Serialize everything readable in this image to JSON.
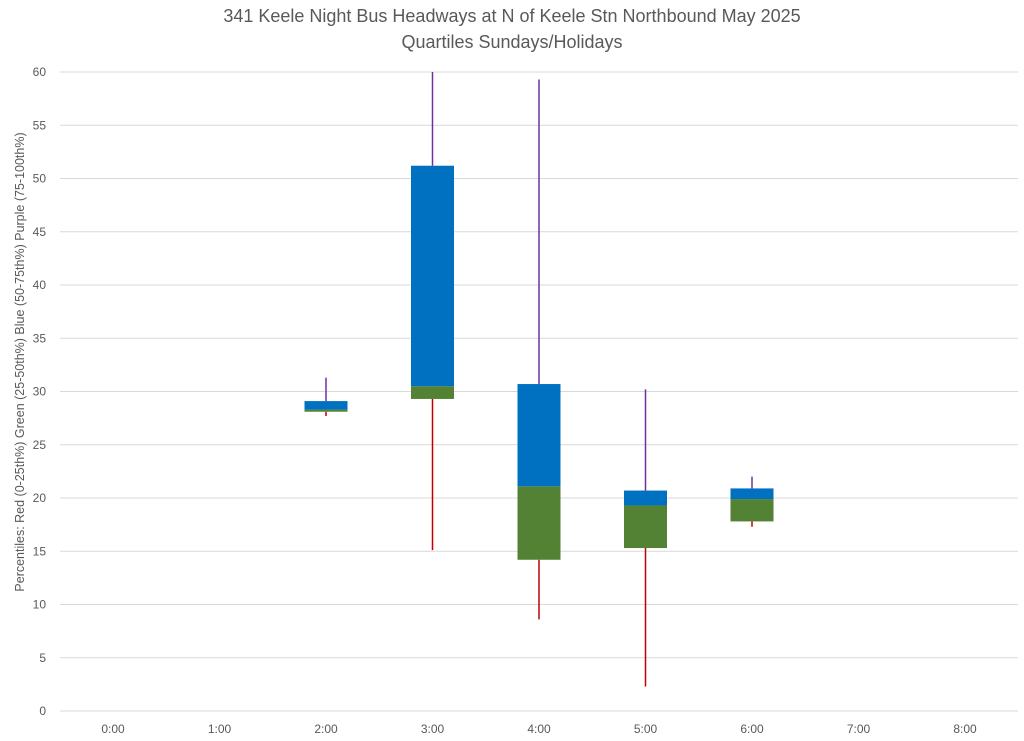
{
  "chart_data": {
    "type": "box",
    "title": "341 Keele Night Bus Headways at N of Keele Stn Northbound May 2025",
    "subtitle": "Quartiles Sundays/Holidays",
    "ylabel": "Percentiles:  Red (0-25th%)  Green (25-50th%)  Blue (50-75th%)  Purple (75-100th%)",
    "xlabel": "",
    "categories": [
      "0:00",
      "1:00",
      "2:00",
      "3:00",
      "4:00",
      "5:00",
      "6:00",
      "7:00",
      "8:00"
    ],
    "yticks": [
      "0",
      "5",
      "10",
      "15",
      "20",
      "25",
      "30",
      "35",
      "40",
      "45",
      "50",
      "55",
      "60"
    ],
    "ylim": [
      0,
      60
    ],
    "grid": true,
    "legend": "none",
    "colors": {
      "red": "#c00000",
      "green": "#548235",
      "blue": "#0070c0",
      "purple": "#7030a0"
    },
    "boxes": [
      {
        "x": "2:00",
        "min": 27.7,
        "q1": 28.1,
        "median": 28.3,
        "q3": 29.1,
        "max": 31.3
      },
      {
        "x": "3:00",
        "min": 15.1,
        "q1": 29.3,
        "median": 30.5,
        "q3": 51.2,
        "max": 60
      },
      {
        "x": "4:00",
        "min": 8.6,
        "q1": 14.2,
        "median": 21.1,
        "q3": 30.7,
        "max": 59.3
      },
      {
        "x": "5:00",
        "min": 2.3,
        "q1": 15.3,
        "median": 19.3,
        "q3": 20.7,
        "max": 30.2
      },
      {
        "x": "6:00",
        "min": 17.3,
        "q1": 17.8,
        "median": 19.9,
        "q3": 20.9,
        "max": 22.0
      }
    ]
  }
}
